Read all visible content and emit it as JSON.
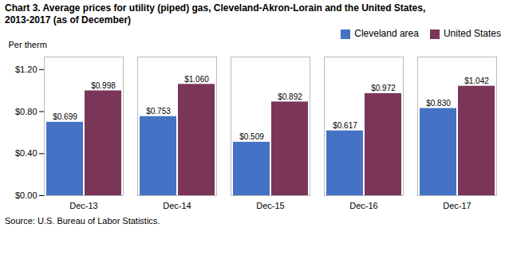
{
  "chart_data": {
    "type": "bar",
    "title": "Chart 3. Average prices for utility (piped) gas, Cleveland-Akron-Lorain and the United States,",
    "subtitle": "2013-2017  (as of December)",
    "ylabel": "Per therm",
    "annotations": [
      "Source: U.S. Bureau of Labor Statistics."
    ],
    "categories": [
      "Dec-13",
      "Dec-14",
      "Dec-15",
      "Dec-16",
      "Dec-17"
    ],
    "series": [
      {
        "name": "Cleveland area",
        "color": "#4472C4",
        "values": [
          0.699,
          0.753,
          0.509,
          0.617,
          0.83
        ],
        "value_labels": [
          "$0.699",
          "$0.753",
          "$0.509",
          "$0.617",
          "$0.830"
        ]
      },
      {
        "name": "United States",
        "color": "#7B3558",
        "values": [
          0.998,
          1.06,
          0.892,
          0.972,
          1.042
        ],
        "value_labels": [
          "$0.998",
          "$1.060",
          "$0.892",
          "$0.972",
          "$1.042"
        ]
      }
    ],
    "ylim": [
      0,
      1.32
    ],
    "yticks": [
      {
        "value": 0,
        "label": "$0.00"
      },
      {
        "value": 0.4,
        "label": "$0.40"
      },
      {
        "value": 0.8,
        "label": "$0.80"
      },
      {
        "value": 1.2,
        "label": "$1.20"
      }
    ],
    "grid": false,
    "legend": "upper right",
    "data_labels": true
  }
}
